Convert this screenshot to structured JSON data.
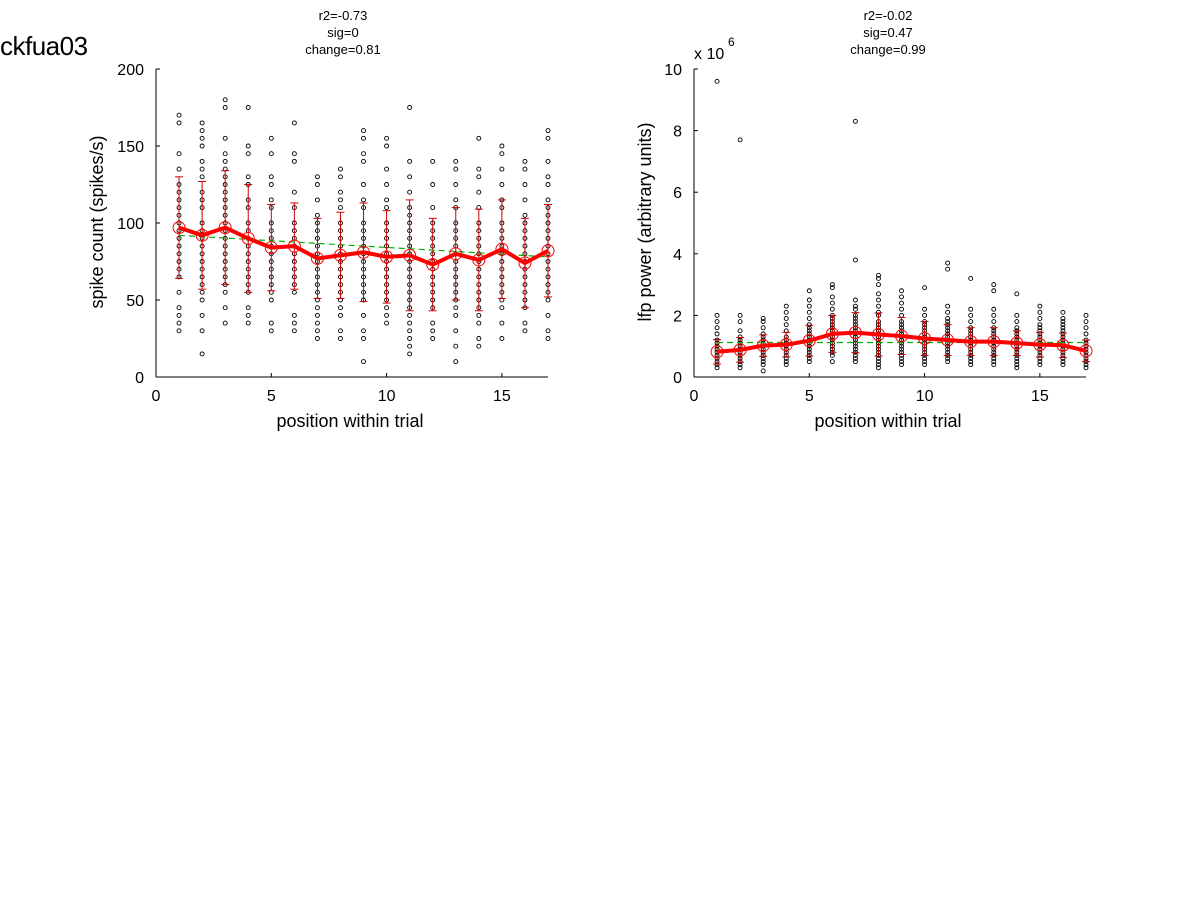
{
  "figure": {
    "title": "ckfua03"
  },
  "chart_data": [
    {
      "type": "scatter",
      "stats": [
        "r2=-0.73",
        "sig=0",
        "change=0.81"
      ],
      "xlabel": "position within trial",
      "ylabel": "spike count (spikes/s)",
      "xlim": [
        0,
        17
      ],
      "ylim": [
        0,
        200
      ],
      "xticks": [
        0,
        5,
        10,
        15
      ],
      "yticks": [
        0,
        50,
        100,
        150,
        200
      ],
      "xtick_labels": [
        "0",
        "5",
        "10",
        "15"
      ],
      "ytick_labels": [
        "0",
        "50",
        "100",
        "150",
        "200"
      ],
      "y_multiplier": "",
      "y_multiplier_exp": "",
      "grid": false,
      "x": [
        1,
        2,
        3,
        4,
        5,
        6,
        7,
        8,
        9,
        10,
        11,
        12,
        13,
        14,
        15,
        16,
        17
      ],
      "points": [
        [
          170,
          165,
          145,
          135,
          125,
          120,
          115,
          110,
          105,
          100,
          95,
          90,
          85,
          80,
          75,
          70,
          65,
          55,
          45,
          40,
          30,
          35
        ],
        [
          165,
          160,
          155,
          150,
          140,
          135,
          130,
          120,
          115,
          110,
          100,
          95,
          90,
          85,
          80,
          75,
          70,
          65,
          60,
          55,
          50,
          40,
          30,
          15
        ],
        [
          180,
          175,
          155,
          145,
          140,
          135,
          130,
          125,
          120,
          115,
          110,
          105,
          100,
          95,
          90,
          85,
          80,
          75,
          70,
          65,
          60,
          55,
          45,
          35
        ],
        [
          175,
          150,
          145,
          130,
          125,
          115,
          110,
          100,
          95,
          90,
          85,
          80,
          75,
          70,
          65,
          60,
          55,
          45,
          40,
          35
        ],
        [
          155,
          145,
          130,
          125,
          115,
          110,
          100,
          95,
          90,
          85,
          80,
          75,
          70,
          65,
          60,
          55,
          50,
          35,
          30
        ],
        [
          165,
          145,
          140,
          120,
          110,
          100,
          95,
          90,
          85,
          80,
          75,
          70,
          65,
          60,
          55,
          40,
          35,
          30
        ],
        [
          130,
          125,
          115,
          105,
          100,
          95,
          90,
          85,
          80,
          75,
          70,
          65,
          60,
          55,
          50,
          45,
          40,
          35,
          30,
          25
        ],
        [
          135,
          130,
          120,
          115,
          110,
          100,
          95,
          90,
          85,
          80,
          75,
          70,
          65,
          60,
          55,
          50,
          45,
          40,
          30,
          25
        ],
        [
          160,
          155,
          145,
          140,
          125,
          115,
          110,
          100,
          95,
          90,
          85,
          80,
          75,
          70,
          65,
          60,
          55,
          50,
          40,
          30,
          25,
          10
        ],
        [
          155,
          150,
          135,
          125,
          115,
          110,
          100,
          95,
          90,
          85,
          80,
          75,
          70,
          65,
          60,
          55,
          50,
          45,
          40,
          35
        ],
        [
          175,
          140,
          130,
          120,
          110,
          105,
          100,
          95,
          90,
          85,
          80,
          75,
          70,
          65,
          60,
          55,
          50,
          45,
          40,
          35,
          30,
          25,
          20,
          15
        ],
        [
          140,
          125,
          110,
          100,
          95,
          90,
          85,
          80,
          75,
          70,
          65,
          60,
          55,
          50,
          45,
          35,
          30,
          25
        ],
        [
          140,
          135,
          125,
          115,
          110,
          100,
          95,
          90,
          85,
          80,
          75,
          70,
          65,
          60,
          55,
          50,
          45,
          40,
          30,
          20,
          10
        ],
        [
          155,
          135,
          130,
          120,
          110,
          100,
          95,
          90,
          85,
          80,
          75,
          70,
          65,
          60,
          55,
          50,
          45,
          40,
          35,
          25,
          20
        ],
        [
          150,
          145,
          135,
          125,
          115,
          110,
          100,
          95,
          90,
          85,
          80,
          75,
          70,
          65,
          60,
          55,
          50,
          45,
          35,
          25
        ],
        [
          140,
          135,
          125,
          115,
          105,
          100,
          95,
          90,
          85,
          80,
          75,
          70,
          65,
          60,
          55,
          50,
          45,
          35,
          30
        ],
        [
          160,
          155,
          140,
          130,
          125,
          115,
          110,
          105,
          100,
          95,
          90,
          85,
          80,
          75,
          70,
          65,
          60,
          55,
          50,
          40,
          30,
          25
        ]
      ],
      "mean": [
        97,
        92,
        97,
        90,
        84,
        85,
        77,
        79,
        81,
        78,
        79,
        73,
        80,
        76,
        83,
        74,
        82
      ],
      "sd": [
        33,
        35,
        37,
        35,
        28,
        28,
        26,
        28,
        32,
        30,
        36,
        30,
        30,
        33,
        32,
        29,
        30
      ],
      "fit": [
        92,
        78
      ],
      "colors": {
        "points": "#000000",
        "mean": "#ff0000",
        "errorbar": "#cc0000",
        "fit": "#00b000"
      }
    },
    {
      "type": "scatter",
      "stats": [
        "r2=-0.02",
        "sig=0.47",
        "change=0.99"
      ],
      "xlabel": "position within trial",
      "ylabel": "lfp power (arbitrary units)",
      "xlim": [
        0,
        17
      ],
      "ylim": [
        0,
        10
      ],
      "xticks": [
        0,
        5,
        10,
        15
      ],
      "yticks": [
        0,
        2,
        4,
        6,
        8,
        10
      ],
      "xtick_labels": [
        "0",
        "5",
        "10",
        "15"
      ],
      "ytick_labels": [
        "0",
        "2",
        "4",
        "6",
        "8",
        "10"
      ],
      "y_multiplier": "x 10",
      "y_multiplier_exp": "6",
      "grid": false,
      "x": [
        1,
        2,
        3,
        4,
        5,
        6,
        7,
        8,
        9,
        10,
        11,
        12,
        13,
        14,
        15,
        16,
        17
      ],
      "points": [
        [
          9.6,
          2.0,
          1.8,
          1.6,
          1.4,
          1.2,
          1.1,
          1.0,
          0.9,
          0.8,
          0.7,
          0.6,
          0.5,
          0.4,
          0.3
        ],
        [
          7.7,
          2.0,
          1.8,
          1.5,
          1.3,
          1.2,
          1.1,
          1.0,
          0.9,
          0.8,
          0.7,
          0.6,
          0.5,
          0.4,
          0.3
        ],
        [
          1.9,
          1.8,
          1.6,
          1.4,
          1.3,
          1.2,
          1.1,
          1.0,
          0.9,
          0.8,
          0.7,
          0.6,
          0.5,
          0.4,
          0.2
        ],
        [
          2.3,
          2.1,
          1.9,
          1.7,
          1.5,
          1.3,
          1.2,
          1.1,
          1.0,
          0.9,
          0.8,
          0.7,
          0.6,
          0.5,
          0.4
        ],
        [
          2.8,
          2.5,
          2.3,
          2.1,
          1.9,
          1.7,
          1.6,
          1.5,
          1.4,
          1.3,
          1.2,
          1.1,
          1.0,
          0.9,
          0.8,
          0.7,
          0.6,
          0.5
        ],
        [
          3.0,
          2.9,
          2.6,
          2.4,
          2.2,
          2.0,
          1.9,
          1.8,
          1.7,
          1.6,
          1.5,
          1.4,
          1.3,
          1.2,
          1.1,
          1.0,
          0.9,
          0.8,
          0.7,
          0.5
        ],
        [
          8.3,
          3.8,
          2.5,
          2.3,
          2.2,
          2.0,
          1.9,
          1.8,
          1.7,
          1.6,
          1.5,
          1.4,
          1.3,
          1.2,
          1.1,
          1.0,
          0.9,
          0.8,
          0.7,
          0.6,
          0.5
        ],
        [
          3.3,
          3.2,
          3.0,
          2.7,
          2.5,
          2.3,
          2.1,
          2.0,
          1.8,
          1.7,
          1.6,
          1.5,
          1.4,
          1.3,
          1.2,
          1.1,
          1.0,
          0.9,
          0.8,
          0.7,
          0.6,
          0.5,
          0.4,
          0.3
        ],
        [
          2.8,
          2.6,
          2.4,
          2.2,
          2.0,
          1.8,
          1.7,
          1.6,
          1.5,
          1.4,
          1.3,
          1.2,
          1.1,
          1.0,
          0.9,
          0.8,
          0.7,
          0.6,
          0.5,
          0.4
        ],
        [
          2.9,
          2.2,
          2.0,
          1.8,
          1.7,
          1.6,
          1.5,
          1.4,
          1.3,
          1.2,
          1.1,
          1.0,
          0.9,
          0.8,
          0.7,
          0.6,
          0.5,
          0.4
        ],
        [
          3.7,
          3.5,
          2.3,
          2.1,
          1.9,
          1.8,
          1.7,
          1.6,
          1.5,
          1.4,
          1.3,
          1.2,
          1.1,
          1.0,
          0.9,
          0.8,
          0.7,
          0.6,
          0.5
        ],
        [
          3.2,
          2.2,
          2.0,
          1.8,
          1.6,
          1.5,
          1.4,
          1.3,
          1.2,
          1.1,
          1.0,
          0.9,
          0.8,
          0.7,
          0.6,
          0.5,
          0.4
        ],
        [
          3.0,
          2.8,
          2.2,
          2.0,
          1.8,
          1.6,
          1.5,
          1.4,
          1.3,
          1.2,
          1.1,
          1.0,
          0.9,
          0.8,
          0.7,
          0.6,
          0.5,
          0.4
        ],
        [
          2.7,
          2.0,
          1.8,
          1.6,
          1.5,
          1.4,
          1.3,
          1.2,
          1.1,
          1.0,
          0.9,
          0.8,
          0.7,
          0.6,
          0.5,
          0.4,
          0.3
        ],
        [
          2.3,
          2.1,
          1.9,
          1.7,
          1.6,
          1.5,
          1.4,
          1.3,
          1.2,
          1.1,
          1.0,
          0.9,
          0.8,
          0.7,
          0.6,
          0.5,
          0.4
        ],
        [
          2.1,
          1.9,
          1.8,
          1.7,
          1.6,
          1.5,
          1.4,
          1.3,
          1.2,
          1.1,
          1.0,
          0.9,
          0.8,
          0.7,
          0.6,
          0.5,
          0.4
        ],
        [
          2.0,
          1.8,
          1.6,
          1.4,
          1.2,
          1.1,
          1.0,
          0.9,
          0.8,
          0.7,
          0.6,
          0.5,
          0.4,
          0.3
        ]
      ],
      "mean": [
        0.82,
        0.88,
        1.02,
        1.05,
        1.18,
        1.4,
        1.44,
        1.38,
        1.33,
        1.25,
        1.2,
        1.15,
        1.15,
        1.1,
        1.05,
        1.03,
        0.85
      ],
      "sd": [
        0.4,
        0.4,
        0.35,
        0.4,
        0.5,
        0.6,
        0.65,
        0.7,
        0.6,
        0.55,
        0.5,
        0.45,
        0.45,
        0.4,
        0.4,
        0.4,
        0.35
      ],
      "fit": [
        1.12,
        1.12
      ],
      "colors": {
        "points": "#000000",
        "mean": "#ff0000",
        "errorbar": "#cc0000",
        "fit": "#00b000"
      }
    }
  ]
}
